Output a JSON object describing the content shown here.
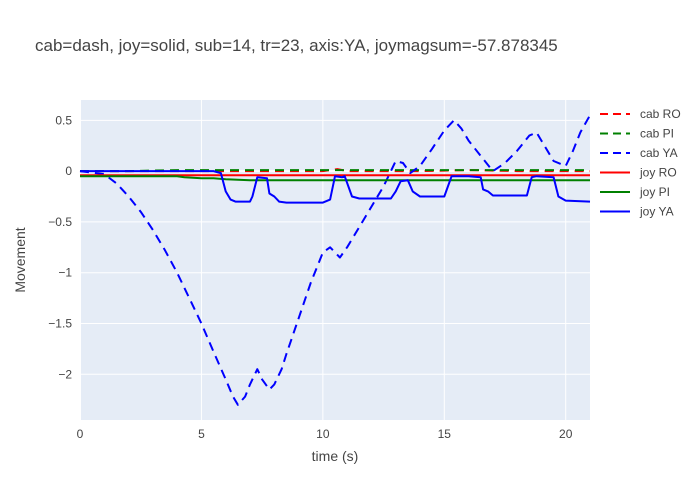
{
  "chart_data": {
    "type": "line",
    "title": "cab=dash, joy=solid, sub=14, tr=23, axis:YA, joymagsum=-57.878345",
    "xlabel": "time (s)",
    "ylabel": "Movement",
    "xlim": [
      0,
      21
    ],
    "ylim": [
      -2.45,
      0.7
    ],
    "xticks": [
      0,
      5,
      10,
      15,
      20
    ],
    "xtick_labels": [
      "0",
      "5",
      "10",
      "15",
      "20"
    ],
    "yticks": [
      -2,
      -1.5,
      -1,
      -0.5,
      0,
      0.5
    ],
    "ytick_labels": [
      "−2",
      "−1.5",
      "−1",
      "−0.5",
      "0",
      "0.5"
    ],
    "grid": true,
    "legend_position": "right",
    "series": [
      {
        "name": "cab RO",
        "color": "#ff0000",
        "dash": "dash",
        "x": [
          0,
          2,
          4,
          6,
          8,
          10,
          10.6,
          11,
          12,
          14,
          16,
          18,
          20,
          21
        ],
        "y": [
          0.0,
          0.0,
          0.0,
          0.0,
          0.0,
          0.0,
          0.02,
          0.0,
          0.0,
          0.0,
          0.01,
          0.0,
          0.0,
          0.0
        ]
      },
      {
        "name": "cab PI",
        "color": "#008000",
        "dash": "dash",
        "x": [
          0,
          2,
          4,
          6,
          8,
          10,
          12,
          14,
          16,
          18,
          20,
          21
        ],
        "y": [
          0.0,
          0.0,
          0.01,
          0.01,
          0.01,
          0.01,
          0.01,
          0.01,
          0.01,
          0.01,
          0.01,
          0.01
        ]
      },
      {
        "name": "cab YA",
        "color": "#0000ff",
        "dash": "dash",
        "x": [
          0,
          1,
          1.5,
          2,
          2.5,
          3,
          3.5,
          4,
          4.5,
          5,
          5.5,
          6,
          6.3,
          6.5,
          6.8,
          7,
          7.3,
          7.5,
          7.8,
          8,
          8.3,
          8.5,
          9,
          9.5,
          10,
          10.3,
          10.7,
          11,
          11.5,
          12,
          12.5,
          12.8,
          13,
          13.3,
          13.6,
          14,
          14.5,
          15,
          15.4,
          15.7,
          16,
          16.5,
          17,
          17.5,
          18,
          18.5,
          18.8,
          19,
          19.5,
          20,
          20.3,
          20.6,
          21
        ],
        "y": [
          0.0,
          -0.03,
          -0.12,
          -0.25,
          -0.4,
          -0.58,
          -0.78,
          -1.0,
          -1.25,
          -1.5,
          -1.78,
          -2.05,
          -2.22,
          -2.3,
          -2.22,
          -2.1,
          -1.95,
          -2.05,
          -2.15,
          -2.1,
          -1.95,
          -1.8,
          -1.45,
          -1.1,
          -0.8,
          -0.75,
          -0.85,
          -0.75,
          -0.55,
          -0.35,
          -0.15,
          0.0,
          0.1,
          0.08,
          -0.02,
          0.05,
          0.22,
          0.4,
          0.5,
          0.42,
          0.3,
          0.15,
          0.0,
          0.08,
          0.2,
          0.35,
          0.38,
          0.3,
          0.1,
          0.05,
          0.2,
          0.38,
          0.55
        ]
      },
      {
        "name": "joy RO",
        "color": "#ff0000",
        "dash": "solid",
        "x": [
          0,
          2,
          4,
          5,
          5.5,
          6,
          7,
          8,
          9,
          10,
          11,
          12,
          14,
          16,
          18,
          20,
          21
        ],
        "y": [
          -0.04,
          -0.04,
          -0.04,
          -0.04,
          -0.04,
          -0.04,
          -0.04,
          -0.04,
          -0.04,
          -0.04,
          -0.04,
          -0.04,
          -0.04,
          -0.04,
          -0.04,
          -0.04,
          -0.04
        ]
      },
      {
        "name": "joy PI",
        "color": "#008000",
        "dash": "solid",
        "x": [
          0,
          2,
          4,
          4.3,
          5,
          5.5,
          6,
          7,
          8,
          10,
          12,
          14,
          16,
          18,
          20,
          21
        ],
        "y": [
          -0.05,
          -0.05,
          -0.05,
          -0.06,
          -0.07,
          -0.07,
          -0.08,
          -0.09,
          -0.09,
          -0.09,
          -0.09,
          -0.09,
          -0.09,
          -0.09,
          -0.09,
          -0.09
        ]
      },
      {
        "name": "joy YA",
        "color": "#0000ff",
        "dash": "solid",
        "x": [
          0,
          1,
          2,
          3,
          4,
          5,
          5.5,
          5.8,
          6.0,
          6.2,
          6.4,
          7.0,
          7.1,
          7.3,
          7.7,
          7.8,
          8.0,
          8.2,
          8.5,
          9.0,
          10.0,
          10.3,
          10.5,
          10.8,
          10.9,
          11.2,
          11.5,
          12.0,
          12.5,
          12.8,
          13.0,
          13.2,
          13.5,
          13.7,
          14.0,
          15.0,
          15.3,
          15.4,
          15.6,
          16.0,
          16.5,
          16.6,
          16.8,
          17.0,
          18.0,
          18.4,
          18.6,
          18.8,
          19.5,
          19.7,
          20.0,
          21.0
        ],
        "y": [
          0.0,
          0.0,
          0.0,
          0.0,
          0.0,
          0.0,
          0.0,
          -0.02,
          -0.2,
          -0.28,
          -0.3,
          -0.3,
          -0.25,
          -0.06,
          -0.07,
          -0.22,
          -0.25,
          -0.3,
          -0.31,
          -0.31,
          -0.31,
          -0.28,
          -0.05,
          -0.06,
          -0.05,
          -0.25,
          -0.27,
          -0.27,
          -0.27,
          -0.27,
          -0.2,
          -0.1,
          -0.09,
          -0.2,
          -0.25,
          -0.25,
          -0.05,
          -0.05,
          -0.05,
          -0.05,
          -0.06,
          -0.18,
          -0.2,
          -0.24,
          -0.24,
          -0.24,
          -0.06,
          -0.05,
          -0.06,
          -0.25,
          -0.29,
          -0.3
        ]
      }
    ]
  }
}
